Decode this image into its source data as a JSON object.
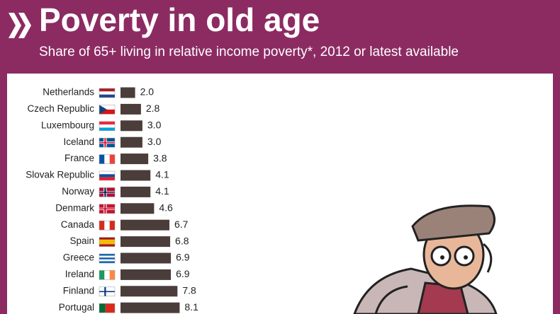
{
  "chart_data": {
    "type": "hbar",
    "title": "Poverty in old age",
    "subtitle": "Share of 65+ living in relative income poverty*, 2012 or latest available",
    "categories": [
      "Netherlands",
      "Czech Republic",
      "Luxembourg",
      "Iceland",
      "France",
      "Slovak Republic",
      "Norway",
      "Denmark",
      "Canada",
      "Spain",
      "Greece",
      "Ireland",
      "Finland",
      "Portugal"
    ],
    "values": [
      2.0,
      2.8,
      3.0,
      3.0,
      3.8,
      4.1,
      4.1,
      4.6,
      6.7,
      6.8,
      6.9,
      6.9,
      7.8,
      8.1
    ],
    "value_labels": [
      "2.0",
      "2.8",
      "3.0",
      "3.0",
      "3.8",
      "4.1",
      "4.1",
      "4.6",
      "6.7",
      "6.8",
      "6.9",
      "6.9",
      "7.8",
      "8.1"
    ],
    "color": "#4a3d3a"
  }
}
